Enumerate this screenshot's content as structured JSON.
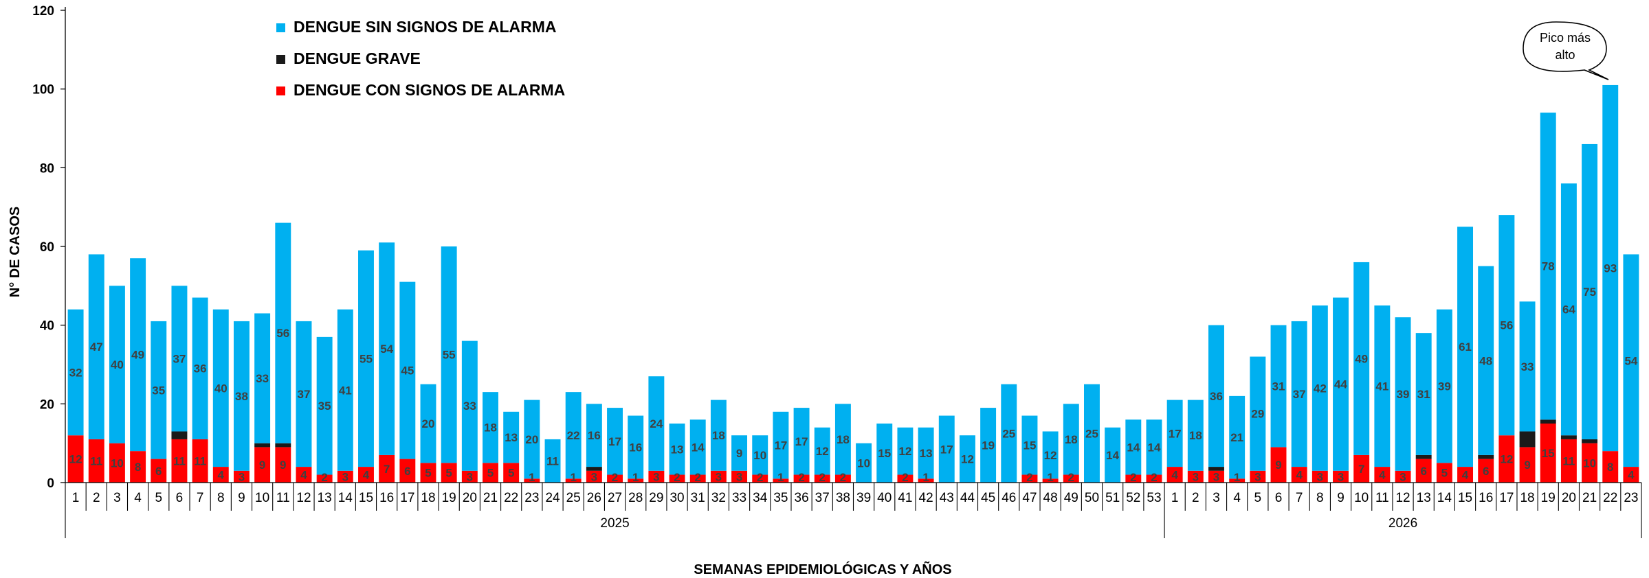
{
  "chart_data": {
    "type": "bar",
    "stacked": true,
    "ylabel": "N° DE CASOS",
    "xlabel": "SEMANAS  EPIDEMIOLÓGICAS  Y AÑOS",
    "ylim": [
      0,
      120
    ],
    "yticks": [
      0,
      20,
      40,
      60,
      80,
      100,
      120
    ],
    "years": [
      {
        "label": "2025",
        "weeks": 53
      },
      {
        "label": "2026",
        "weeks": 23
      }
    ],
    "categories": [
      "1",
      "2",
      "3",
      "4",
      "5",
      "6",
      "7",
      "8",
      "9",
      "10",
      "11",
      "12",
      "13",
      "14",
      "15",
      "16",
      "17",
      "18",
      "19",
      "20",
      "21",
      "22",
      "23",
      "24",
      "25",
      "26",
      "27",
      "28",
      "29",
      "30",
      "31",
      "32",
      "33",
      "34",
      "35",
      "36",
      "37",
      "38",
      "39",
      "40",
      "41",
      "42",
      "43",
      "44",
      "45",
      "46",
      "47",
      "48",
      "49",
      "50",
      "51",
      "52",
      "53",
      "1",
      "2",
      "3",
      "4",
      "5",
      "6",
      "7",
      "8",
      "9",
      "10",
      "11",
      "12",
      "13",
      "14",
      "15",
      "16",
      "17",
      "18",
      "19",
      "20",
      "21",
      "22",
      "23"
    ],
    "series": [
      {
        "name": "DENGUE CON SIGNOS DE ALARMA",
        "color": "#ff0000",
        "values": [
          12,
          11,
          10,
          8,
          6,
          11,
          11,
          4,
          3,
          9,
          9,
          4,
          2,
          3,
          4,
          7,
          6,
          5,
          5,
          3,
          5,
          5,
          1,
          0,
          1,
          3,
          2,
          1,
          3,
          2,
          2,
          3,
          3,
          2,
          1,
          2,
          2,
          2,
          0,
          0,
          2,
          1,
          0,
          0,
          0,
          0,
          2,
          1,
          2,
          0,
          0,
          2,
          2,
          4,
          3,
          3,
          1,
          3,
          9,
          4,
          3,
          3,
          7,
          4,
          3,
          6,
          5,
          4,
          6,
          12,
          9,
          15,
          11,
          10,
          8,
          4
        ]
      },
      {
        "name": "DENGUE GRAVE",
        "color": "#1a1a1a",
        "values": [
          0,
          0,
          0,
          0,
          0,
          2,
          0,
          0,
          0,
          1,
          1,
          0,
          0,
          0,
          0,
          0,
          0,
          0,
          0,
          0,
          0,
          0,
          0,
          0,
          0,
          1,
          0,
          0,
          0,
          0,
          0,
          0,
          0,
          0,
          0,
          0,
          0,
          0,
          0,
          0,
          0,
          0,
          0,
          0,
          0,
          0,
          0,
          0,
          0,
          0,
          0,
          0,
          0,
          0,
          0,
          1,
          0,
          0,
          0,
          0,
          0,
          0,
          0,
          0,
          0,
          1,
          0,
          0,
          1,
          0,
          4,
          1,
          1,
          1,
          0,
          0
        ]
      },
      {
        "name": "DENGUE SIN SIGNOS DE ALARMA",
        "color": "#00b0f0",
        "values": [
          32,
          47,
          40,
          49,
          35,
          37,
          36,
          40,
          38,
          33,
          56,
          37,
          35,
          41,
          55,
          54,
          45,
          20,
          55,
          33,
          18,
          13,
          20,
          11,
          22,
          16,
          17,
          16,
          24,
          13,
          14,
          18,
          9,
          10,
          17,
          17,
          12,
          18,
          10,
          15,
          12,
          13,
          17,
          12,
          19,
          25,
          15,
          12,
          18,
          25,
          14,
          14,
          14,
          17,
          18,
          36,
          21,
          29,
          31,
          37,
          42,
          44,
          49,
          41,
          39,
          31,
          39,
          61,
          48,
          56,
          33,
          78,
          64,
          75,
          93,
          54
        ]
      }
    ],
    "sin_labels_shown": [
      32,
      47,
      40,
      49,
      35,
      37,
      36,
      40,
      38,
      33,
      56,
      37,
      35,
      41,
      55,
      54,
      45,
      20,
      55,
      33,
      18,
      13,
      20,
      11,
      22,
      16,
      17,
      16,
      24,
      13,
      14,
      18,
      9,
      10,
      17,
      17,
      12,
      18,
      10,
      15,
      12,
      13,
      17,
      12,
      19,
      25,
      15,
      12,
      18,
      25,
      14,
      14,
      14,
      17,
      18,
      36,
      21,
      29,
      31,
      37,
      42,
      44,
      49,
      41,
      39,
      31,
      39,
      61,
      48,
      56,
      33,
      78,
      64,
      75,
      93,
      54
    ],
    "con_labels_shown": [
      "12",
      "11",
      "10",
      "8",
      "6",
      "11",
      "11",
      "4",
      "3",
      "9",
      "9",
      "4",
      "2",
      "3",
      "4",
      "7",
      "6",
      "5",
      "5",
      "3",
      "5",
      "5",
      "1",
      "",
      "1",
      "3",
      "2",
      "1",
      "3",
      "2",
      "2",
      "3",
      "3",
      "2",
      "1",
      "2",
      "2",
      "2",
      "",
      "",
      "2",
      "1",
      "",
      "",
      "",
      "",
      "2",
      "1",
      "2",
      "",
      "",
      "2",
      "2",
      "4",
      "3",
      "3",
      "1",
      "3",
      "9",
      "4",
      "3",
      "3",
      "7",
      "4",
      "3",
      "6",
      "5",
      "4",
      "6",
      "12",
      "9",
      "15",
      "11",
      "10",
      "8",
      "4"
    ],
    "legend_placement": "top-left",
    "callout": {
      "text_line1": "Pico más",
      "text_line2": "alto",
      "week_index": 74
    },
    "grid": false
  }
}
